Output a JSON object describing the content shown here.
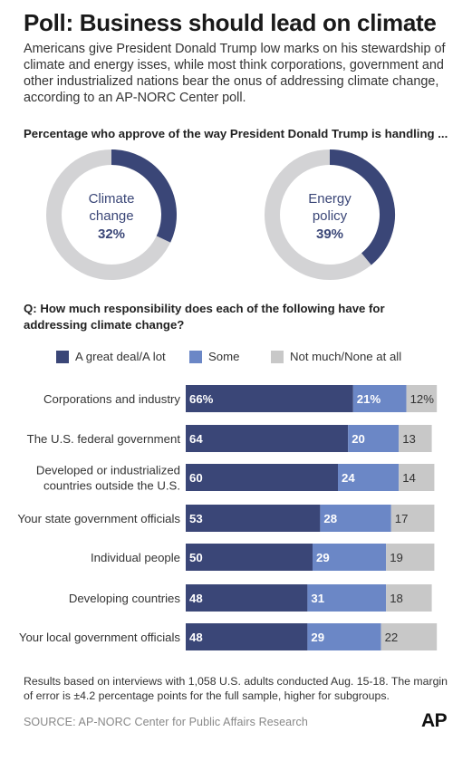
{
  "title": "Poll: Business should lead on climate",
  "intro": "Americans give President Donald Trump low marks on his stewardship of climate and energy isses, while most think corporations, government and other industrialized nations bear the onus of addressing climate change, according to an AP-NORC Center poll.",
  "donut_question": "Percentage who approve of the way President Donald Trump is handling ...",
  "response_question": "Q: How much responsibility does each of the following have for addressing climate change?",
  "legend": [
    {
      "label": "A great deal/A lot",
      "color": "#3a4677"
    },
    {
      "label": "Some",
      "color": "#6b87c6"
    },
    {
      "label": "Not much/None at all",
      "color": "#c8c8c8"
    }
  ],
  "notes": "Results based on interviews with 1,058 U.S. adults conducted Aug. 15-18. The margin of error is ±4.2 percentage points for the full sample, higher for subgroups.",
  "source": "SOURCE: AP-NORC Center for Public Affairs Research",
  "logo_text": "AP",
  "colors": {
    "dark": "#3a4677",
    "medium": "#6b87c6",
    "light": "#c8c8c8",
    "donut_track": "#d3d3d5"
  },
  "chart_data": [
    {
      "type": "pie",
      "title": "Percentage who approve of the way President Donald Trump is handling ...",
      "donuts": [
        {
          "label_lines": [
            "Climate",
            "change"
          ],
          "value": 32,
          "value_text": "32%"
        },
        {
          "label_lines": [
            "Energy",
            "policy"
          ],
          "value": 39,
          "value_text": "39%"
        }
      ]
    },
    {
      "type": "bar",
      "stacked": true,
      "orientation": "horizontal",
      "title": "Q: How much responsibility does each of the following have for addressing climate change?",
      "categories": [
        [
          "Corporations and industry"
        ],
        [
          "The U.S. federal government"
        ],
        [
          "Developed or industrialized",
          "countries outside the U.S."
        ],
        [
          "Your state government officials"
        ],
        [
          "Individual people"
        ],
        [
          "Developing countries"
        ],
        [
          "Your local government officials"
        ]
      ],
      "series": [
        {
          "name": "A great deal/A lot",
          "values": [
            66,
            64,
            60,
            53,
            50,
            48,
            48
          ],
          "labels": [
            "66%",
            "64",
            "60",
            "53",
            "50",
            "48",
            "48"
          ]
        },
        {
          "name": "Some",
          "values": [
            21,
            20,
            24,
            28,
            29,
            31,
            29
          ],
          "labels": [
            "21%",
            "20",
            "24",
            "28",
            "29",
            "31",
            "29"
          ]
        },
        {
          "name": "Not much/None at all",
          "values": [
            12,
            13,
            14,
            17,
            19,
            18,
            22
          ],
          "labels": [
            "12%",
            "13",
            "14",
            "17",
            "19",
            "18",
            "22"
          ]
        }
      ],
      "xlim": [
        0,
        100
      ]
    }
  ]
}
